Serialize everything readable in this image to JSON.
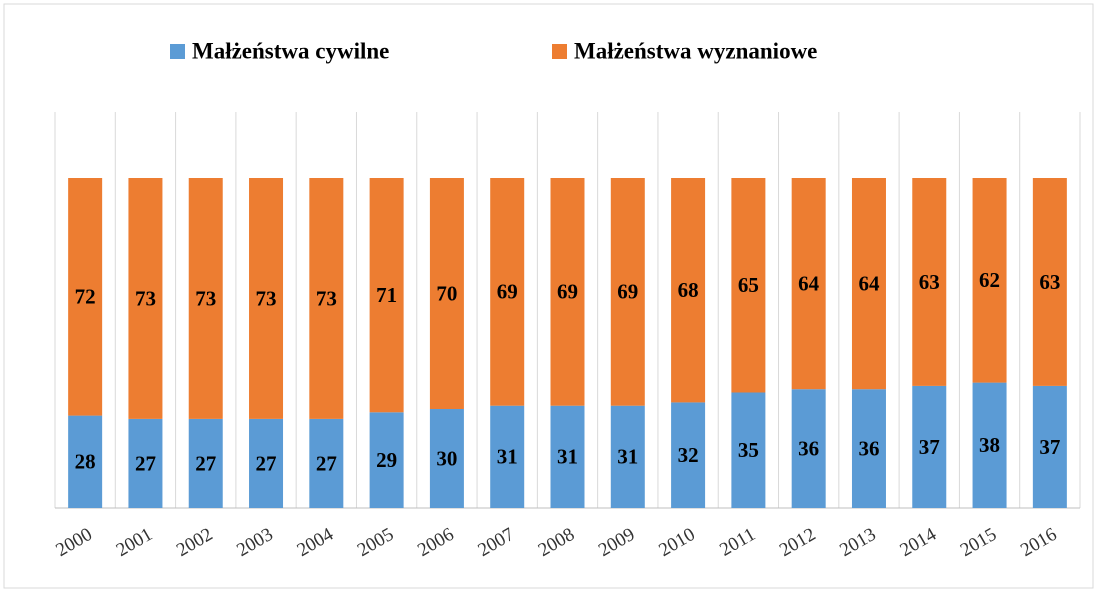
{
  "chart_data": {
    "type": "stacked_bar",
    "categories": [
      "2000",
      "2001",
      "2002",
      "2003",
      "2004",
      "2005",
      "2006",
      "2007",
      "2008",
      "2009",
      "2010",
      "2011",
      "2012",
      "2013",
      "2014",
      "2015",
      "2016"
    ],
    "series": [
      {
        "name": "Małżeństwa cywilne",
        "color": "#5b9bd5",
        "values": [
          28,
          27,
          27,
          27,
          27,
          29,
          30,
          31,
          31,
          31,
          32,
          35,
          36,
          36,
          37,
          38,
          37
        ]
      },
      {
        "name": "Małżeństwa wyznaniowe",
        "color": "#ed7d31",
        "values": [
          72,
          73,
          73,
          73,
          73,
          71,
          70,
          69,
          69,
          69,
          68,
          65,
          64,
          64,
          63,
          62,
          63
        ]
      }
    ],
    "ylim": [
      0,
      120
    ],
    "legend": "top"
  }
}
